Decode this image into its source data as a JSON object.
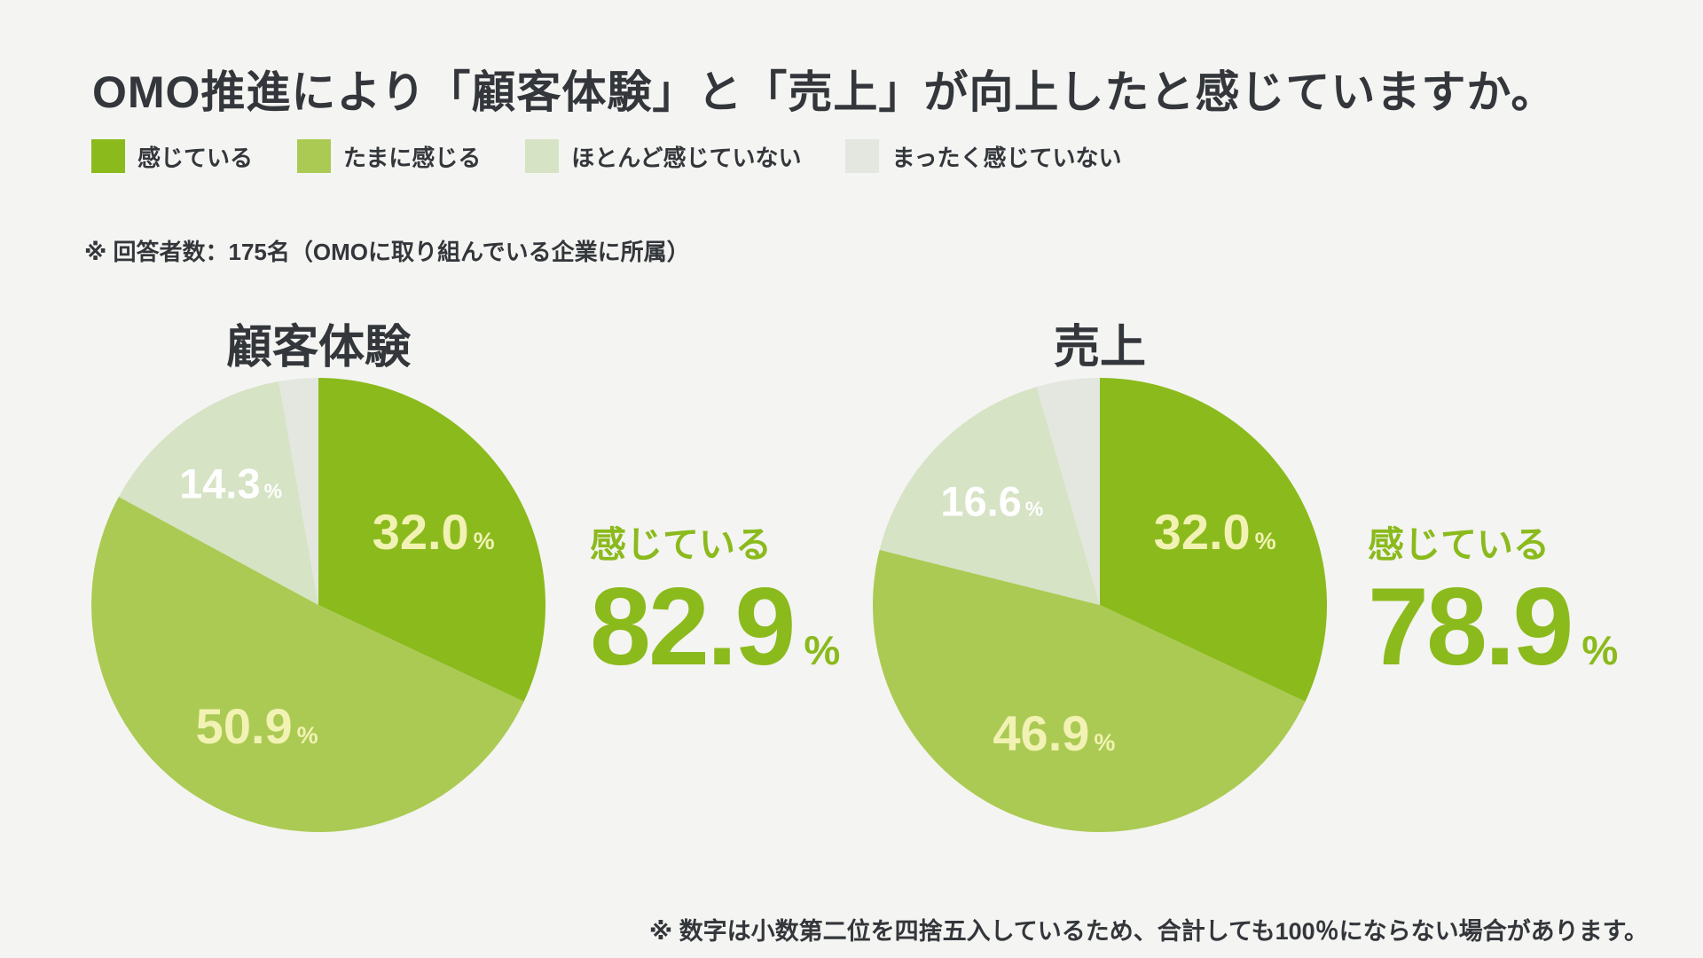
{
  "page": {
    "title": "OMO推進により「顧客体験」と「売上」が向上したと感じていますか。",
    "respondents_note": "※ 回答者数：175名（OMOに取り組んでいる企業に所属）",
    "footer_note": "※ 数字は小数第二位を四捨五入しているため、合計しても100％にならない場合があります。",
    "background_color": "#f4f4f2",
    "text_color": "#33363a",
    "accent_color": "#8bba1c"
  },
  "legend": {
    "items": [
      {
        "label": "感じている",
        "color": "#8bba1c"
      },
      {
        "label": "たまに感じる",
        "color": "#abca53"
      },
      {
        "label": "ほとんど感じていない",
        "color": "#d6e3c4"
      },
      {
        "label": "まったく感じていない",
        "color": "#e3e7df"
      }
    ]
  },
  "chart_data": [
    {
      "type": "pie",
      "title": "顧客体験",
      "unit": "%",
      "start_angle": "12-o-clock-clockwise",
      "slices": [
        {
          "label": "感じている",
          "value": 32.0,
          "display": "32.0",
          "color": "#8bba1c",
          "text_color": "#f1f2b3",
          "show_label": true,
          "size": "large"
        },
        {
          "label": "たまに感じる",
          "value": 50.9,
          "display": "50.9",
          "color": "#abca53",
          "text_color": "#f1f2b3",
          "show_label": true,
          "size": "large"
        },
        {
          "label": "ほとんど感じていない",
          "value": 14.3,
          "display": "14.3",
          "color": "#d6e3c4",
          "text_color": "#ffffff",
          "show_label": true,
          "size": "small"
        },
        {
          "label": "まったく感じていない",
          "value": 2.8,
          "color": "#e3e7df",
          "show_label": false,
          "size": "small"
        }
      ],
      "summary": {
        "label": "感じている",
        "value": 82.9,
        "display": "82.9",
        "unit": "%"
      }
    },
    {
      "type": "pie",
      "title": "売上",
      "unit": "%",
      "start_angle": "12-o-clock-clockwise",
      "slices": [
        {
          "label": "感じている",
          "value": 32.0,
          "display": "32.0",
          "color": "#8bba1c",
          "text_color": "#f1f2b3",
          "show_label": true,
          "size": "large"
        },
        {
          "label": "たまに感じる",
          "value": 46.9,
          "display": "46.9",
          "color": "#abca53",
          "text_color": "#f1f2b3",
          "show_label": true,
          "size": "large"
        },
        {
          "label": "ほとんど感じていない",
          "value": 16.6,
          "display": "16.6",
          "color": "#d6e3c4",
          "text_color": "#ffffff",
          "show_label": true,
          "size": "small"
        },
        {
          "label": "まったく感じていない",
          "value": 4.5,
          "color": "#e3e7df",
          "show_label": false,
          "size": "small"
        }
      ],
      "summary": {
        "label": "感じている",
        "value": 78.9,
        "display": "78.9",
        "unit": "%"
      }
    }
  ]
}
